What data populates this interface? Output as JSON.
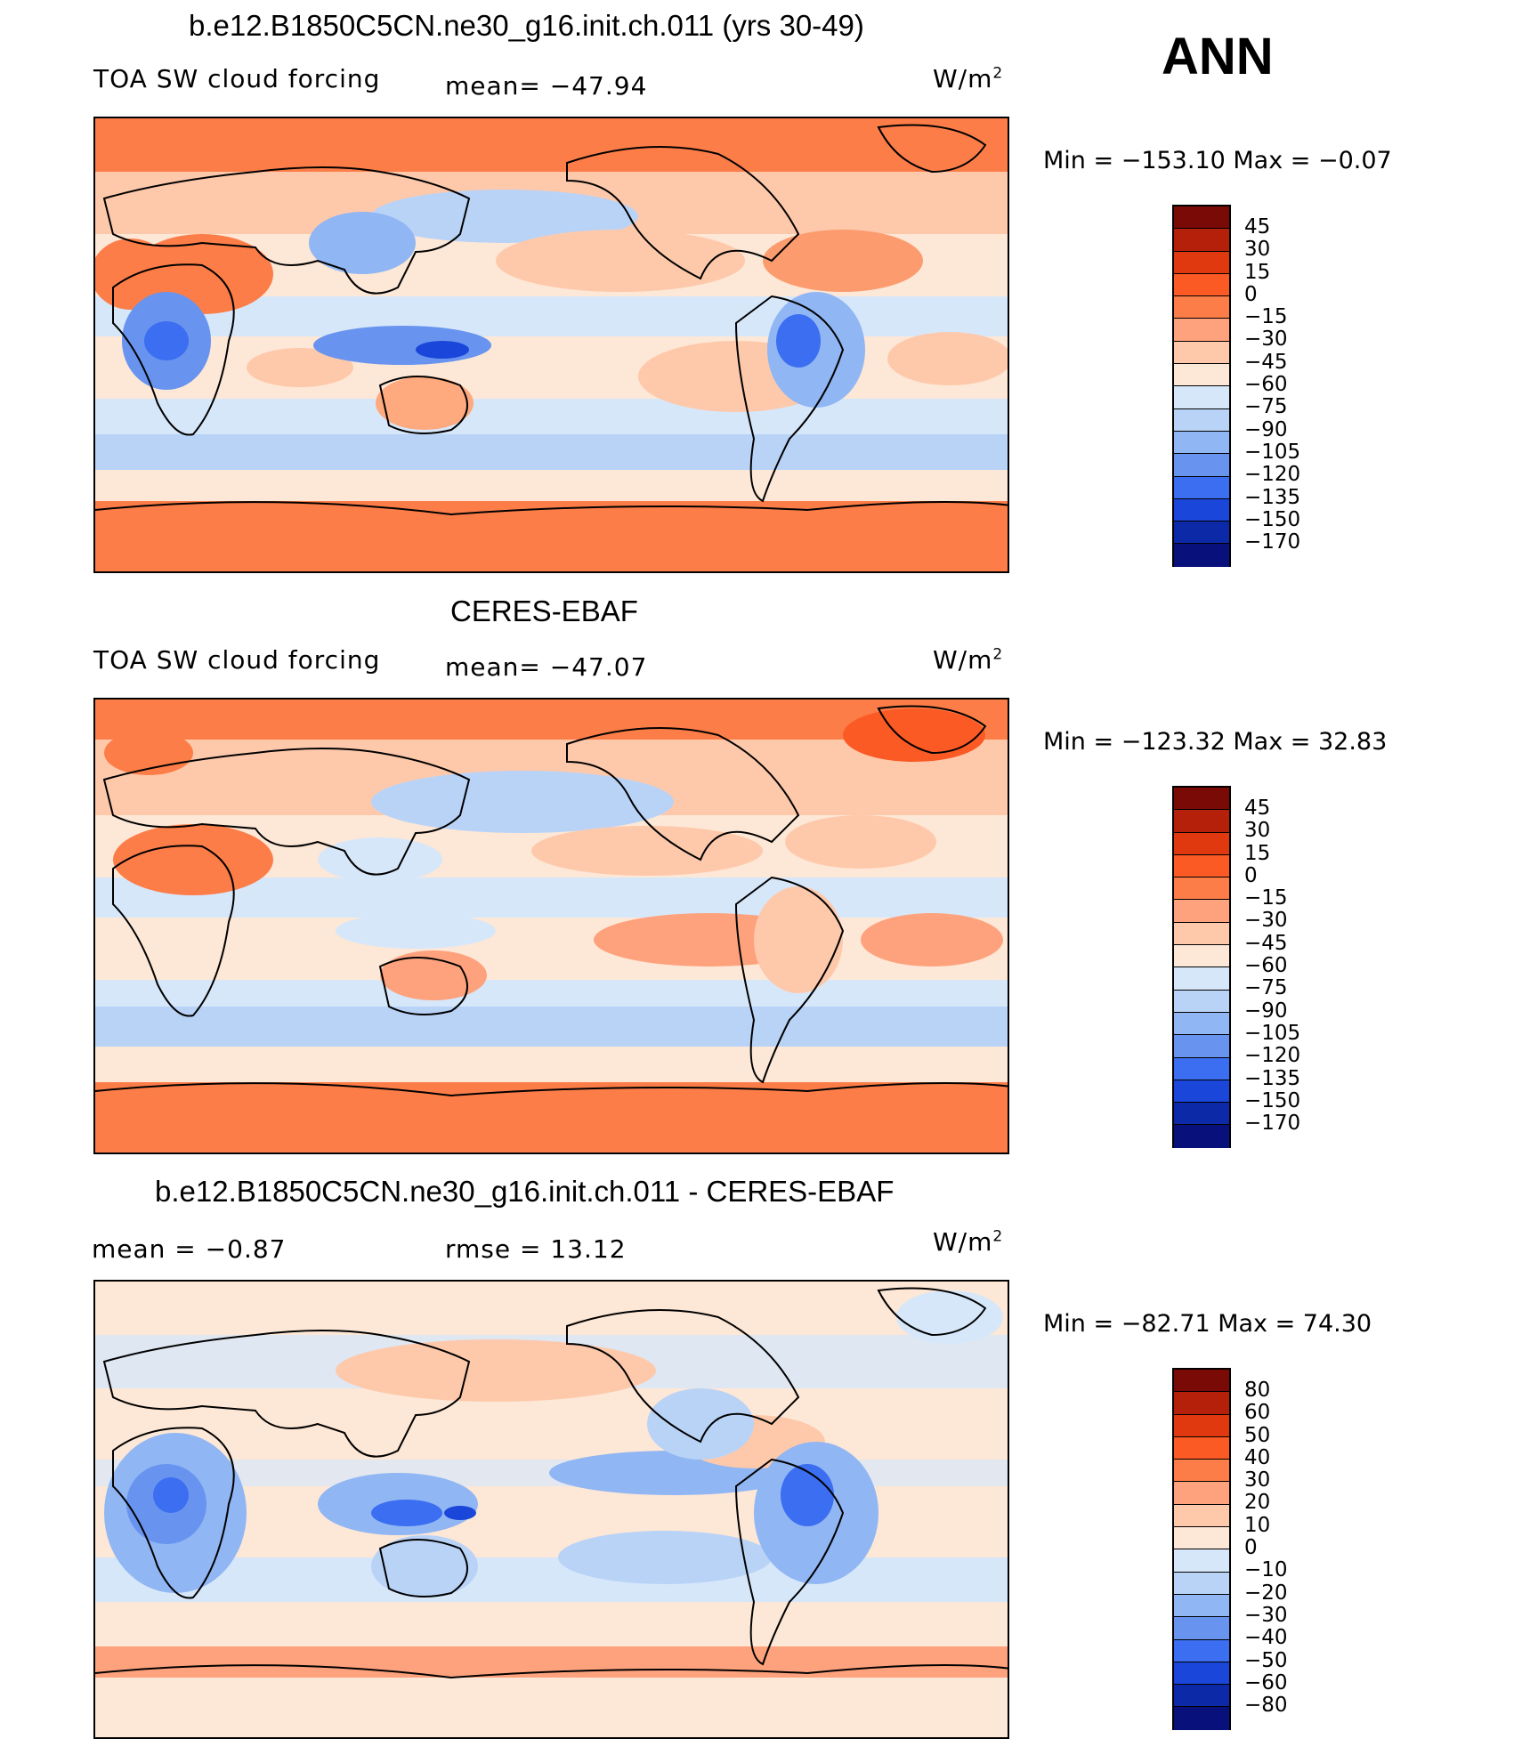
{
  "season": "ANN",
  "panels": [
    {
      "title": "b.e12.B1850C5CN.ne30_g16.init.ch.011 (yrs 30-49)",
      "left_label": "TOA SW cloud forcing",
      "mid_label": "mean= −47.94",
      "units": "W/m",
      "units_sup": "2",
      "min_max": "Min = −153.10 Max = −0.07"
    },
    {
      "title": "CERES-EBAF",
      "left_label": "TOA SW cloud forcing",
      "mid_label": "mean= −47.07",
      "units": "W/m",
      "units_sup": "2",
      "min_max": "Min = −123.32 Max = 32.83"
    },
    {
      "title": "b.e12.B1850C5CN.ne30_g16.init.ch.011 - CERES-EBAF",
      "left_label": "mean = −0.87",
      "mid_label": "rmse = 13.12",
      "units": "W/m",
      "units_sup": "2",
      "min_max": "Min = −82.71 Max = 74.30"
    }
  ],
  "chart_data": [
    {
      "type": "heatmap",
      "title": "b.e12.B1850C5CN.ne30_g16.init.ch.011 (yrs 30-49)",
      "variable": "TOA SW cloud forcing",
      "units": "W/m2",
      "mean": -47.94,
      "min": -153.1,
      "max": -0.07,
      "colorbar_ticks": [
        "45",
        "30",
        "15",
        "0",
        "−15",
        "−30",
        "−45",
        "−60",
        "−75",
        "−90",
        "−105",
        "−120",
        "−135",
        "−150",
        "−170"
      ]
    },
    {
      "type": "heatmap",
      "title": "CERES-EBAF",
      "variable": "TOA SW cloud forcing",
      "units": "W/m2",
      "mean": -47.07,
      "min": -123.32,
      "max": 32.83,
      "colorbar_ticks": [
        "45",
        "30",
        "15",
        "0",
        "−15",
        "−30",
        "−45",
        "−60",
        "−75",
        "−90",
        "−105",
        "−120",
        "−135",
        "−150",
        "−170"
      ]
    },
    {
      "type": "heatmap",
      "title": "b.e12.B1850C5CN.ne30_g16.init.ch.011 - CERES-EBAF",
      "units": "W/m2",
      "mean": -0.87,
      "rmse": 13.12,
      "min": -82.71,
      "max": 74.3,
      "colorbar_ticks": [
        "80",
        "60",
        "50",
        "40",
        "30",
        "20",
        "10",
        "0",
        "−10",
        "−20",
        "−30",
        "−40",
        "−50",
        "−60",
        "−80"
      ]
    }
  ],
  "colors": {
    "scale": [
      "#7a0a05",
      "#b5200a",
      "#e0390f",
      "#fb5a25",
      "#fc7d48",
      "#fda27c",
      "#fec9ab",
      "#fde7d6",
      "#d7e7fa",
      "#b9d3f7",
      "#90b6f4",
      "#6894f0",
      "#3b6ef0",
      "#1a46d9",
      "#0c2aa8",
      "#08107c"
    ]
  }
}
